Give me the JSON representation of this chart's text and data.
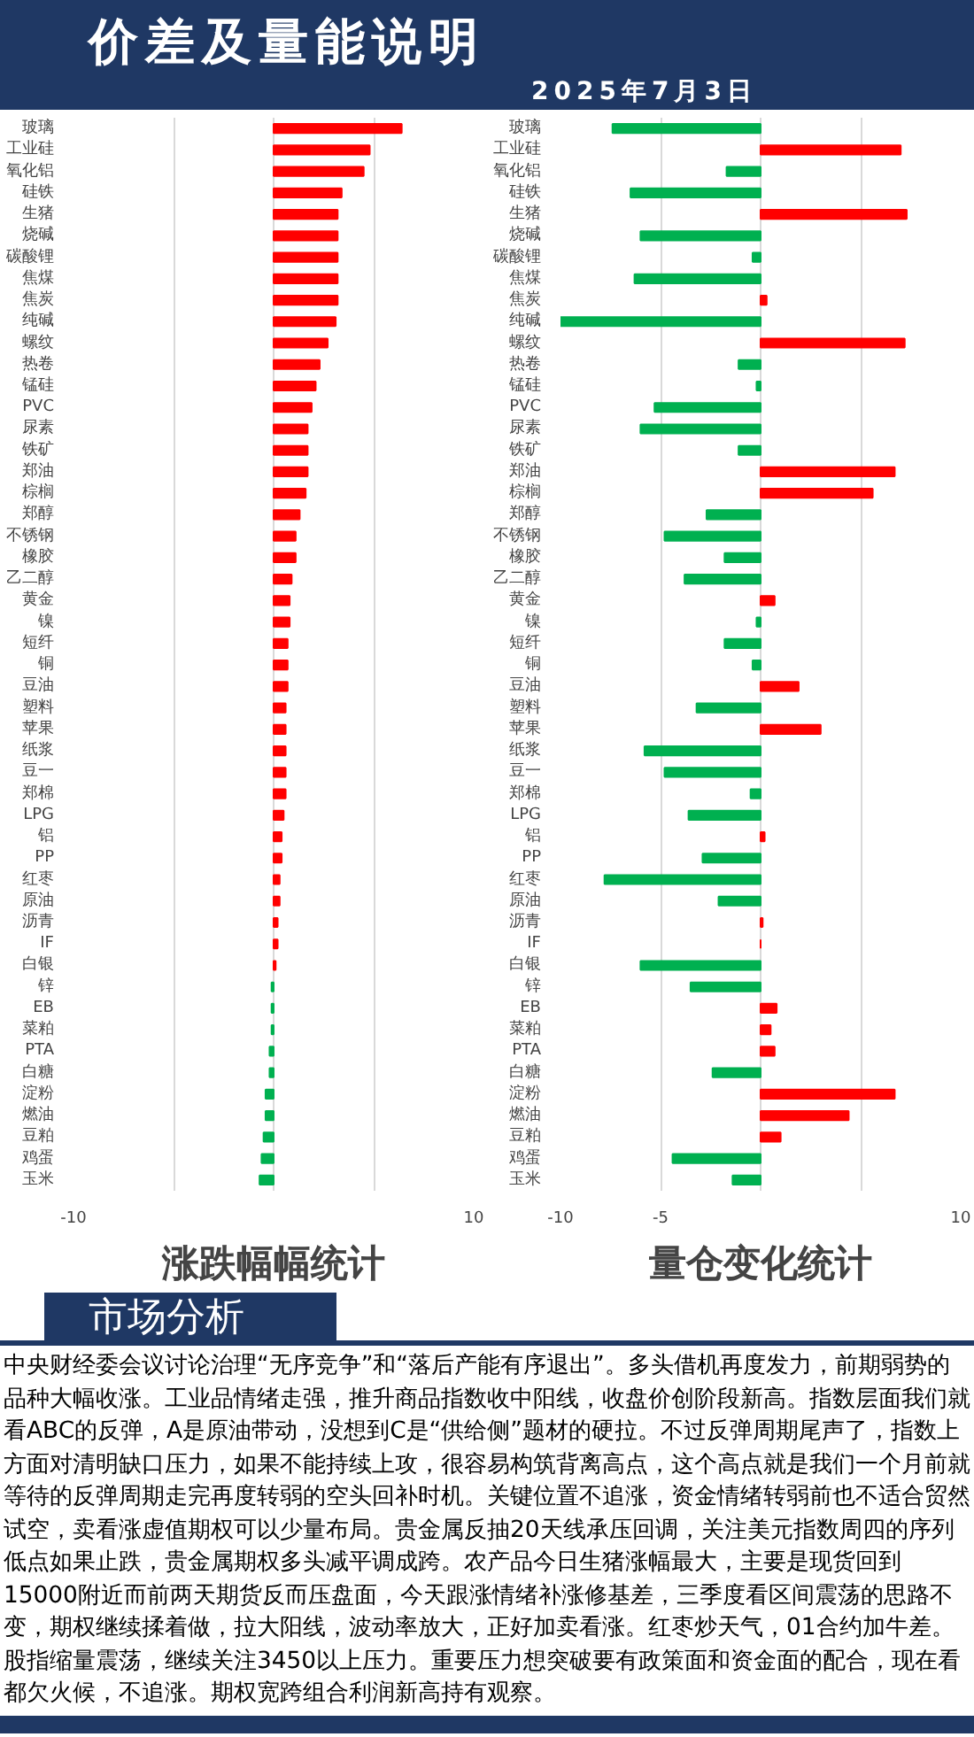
{
  "chart_data": [
    {
      "type": "other",
      "title": "价差及量能说明",
      "subtitle": "2025年7月3日"
    },
    {
      "type": "bar",
      "orientation": "horizontal",
      "title": "涨跌幅幅统计",
      "categories": [
        "玻璃",
        "工业硅",
        "氧化铝",
        "硅铁",
        "生猪",
        "烧碱",
        "碳酸锂",
        "焦煤",
        "焦炭",
        "纯碱",
        "螺纹",
        "热卷",
        "锰硅",
        "PVC",
        "尿素",
        "铁矿",
        "郑油",
        "棕榈",
        "郑醇",
        "不锈钢",
        "橡胶",
        "乙二醇",
        "黄金",
        "镍",
        "短纤",
        "铜",
        "豆油",
        "塑料",
        "苹果",
        "纸浆",
        "豆一",
        "郑棉",
        "LPG",
        "铝",
        "PP",
        "红枣",
        "原油",
        "沥青",
        "IF",
        "白银",
        "锌",
        "EB",
        "菜粕",
        "PTA",
        "白糖",
        "淀粉",
        "燃油",
        "豆粕",
        "鸡蛋",
        "玉米"
      ],
      "values": [
        6.4,
        4.8,
        4.5,
        3.4,
        3.2,
        3.2,
        3.2,
        3.2,
        3.2,
        3.1,
        2.7,
        2.3,
        2.1,
        1.9,
        1.7,
        1.7,
        1.7,
        1.6,
        1.3,
        1.1,
        1.1,
        0.9,
        0.8,
        0.8,
        0.7,
        0.7,
        0.7,
        0.6,
        0.6,
        0.6,
        0.6,
        0.6,
        0.5,
        0.4,
        0.4,
        0.3,
        0.3,
        0.2,
        0.2,
        0.1,
        -0.1,
        -0.1,
        -0.1,
        -0.2,
        -0.2,
        -0.4,
        -0.4,
        -0.5,
        -0.6,
        -0.7
      ],
      "colors": [
        "#ff0000",
        "#ff0000",
        "#ff0000",
        "#ff0000",
        "#ff0000",
        "#ff0000",
        "#ff0000",
        "#ff0000",
        "#ff0000",
        "#ff0000",
        "#ff0000",
        "#ff0000",
        "#ff0000",
        "#ff0000",
        "#ff0000",
        "#ff0000",
        "#ff0000",
        "#ff0000",
        "#ff0000",
        "#ff0000",
        "#ff0000",
        "#ff0000",
        "#ff0000",
        "#ff0000",
        "#ff0000",
        "#ff0000",
        "#ff0000",
        "#ff0000",
        "#ff0000",
        "#ff0000",
        "#ff0000",
        "#ff0000",
        "#ff0000",
        "#ff0000",
        "#ff0000",
        "#ff0000",
        "#ff0000",
        "#ff0000",
        "#ff0000",
        "#ff0000",
        "#00b050",
        "#00b050",
        "#00b050",
        "#00b050",
        "#00b050",
        "#00b050",
        "#00b050",
        "#00b050",
        "#00b050",
        "#00b050"
      ],
      "xlim": [
        -10,
        10
      ],
      "xticks": [
        -10,
        {
          "value": -5,
          "label": null
        },
        {
          "value": 0,
          "label": null
        },
        {
          "value": 5,
          "label": null
        },
        10
      ],
      "grid": "x"
    },
    {
      "type": "bar",
      "orientation": "horizontal",
      "title": "量仓变化统计",
      "categories": [
        "玻璃",
        "工业硅",
        "氧化铝",
        "硅铁",
        "生猪",
        "烧碱",
        "碳酸锂",
        "焦煤",
        "焦炭",
        "纯碱",
        "螺纹",
        "热卷",
        "锰硅",
        "PVC",
        "尿素",
        "铁矿",
        "郑油",
        "棕榈",
        "郑醇",
        "不锈钢",
        "橡胶",
        "乙二醇",
        "黄金",
        "镍",
        "短纤",
        "铜",
        "豆油",
        "塑料",
        "苹果",
        "纸浆",
        "豆一",
        "郑棉",
        "LPG",
        "铝",
        "PP",
        "红枣",
        "原油",
        "沥青",
        "IF",
        "白银",
        "锌",
        "EB",
        "菜粕",
        "PTA",
        "白糖",
        "淀粉",
        "燃油",
        "豆粕",
        "鸡蛋",
        "玉米"
      ],
      "values": [
        -7.4,
        7.0,
        -1.7,
        -6.5,
        7.3,
        -6.0,
        -0.4,
        -6.3,
        0.3,
        -10.0,
        7.2,
        -1.1,
        -0.2,
        -5.3,
        -6.0,
        -1.1,
        6.7,
        5.6,
        -2.7,
        -4.8,
        -1.8,
        -3.8,
        0.7,
        -0.2,
        -1.8,
        -0.4,
        1.9,
        -3.2,
        3.0,
        -5.8,
        -4.8,
        -0.5,
        -3.6,
        0.2,
        -2.9,
        -7.8,
        -2.1,
        0.1,
        0,
        -6.0,
        -3.5,
        0.8,
        0.5,
        0.7,
        -2.4,
        6.7,
        4.4,
        1.0,
        -4.4,
        -1.4
      ],
      "colors": [
        "#00b050",
        "#ff0000",
        "#00b050",
        "#00b050",
        "#ff0000",
        "#00b050",
        "#00b050",
        "#00b050",
        "#ff0000",
        "#00b050",
        "#ff0000",
        "#00b050",
        "#00b050",
        "#00b050",
        "#00b050",
        "#00b050",
        "#ff0000",
        "#ff0000",
        "#00b050",
        "#00b050",
        "#00b050",
        "#00b050",
        "#ff0000",
        "#00b050",
        "#00b050",
        "#00b050",
        "#ff0000",
        "#00b050",
        "#ff0000",
        "#00b050",
        "#00b050",
        "#00b050",
        "#00b050",
        "#ff0000",
        "#00b050",
        "#00b050",
        "#00b050",
        "#ff0000",
        "#ff0000",
        "#00b050",
        "#00b050",
        "#ff0000",
        "#ff0000",
        "#ff0000",
        "#00b050",
        "#ff0000",
        "#ff0000",
        "#ff0000",
        "#00b050",
        "#00b050"
      ],
      "xlim": [
        -10,
        10
      ],
      "xticks": [
        -10,
        -5,
        {
          "value": 0,
          "label": null
        },
        {
          "value": 5,
          "label": null
        },
        10
      ],
      "grid": "x"
    },
    {
      "type": "other",
      "title": "市场分析",
      "annotations": [
        "中央财经委会议讨论治理“无序竞争”和“落后产能有序退出”。多头借机再度发力，前期弱势的品种大幅收涨。工业品情绪走强，推升商品指数收中阳线，收盘价创阶段新高。指数层面我们就看ABC的反弹，A是原油带动，没想到C是“供给侧”题材的硬拉。不过反弹周期尾声了，指数上方面对清明缺口压力，如果不能持续上攻，很容易构筑背离高点，这个高点就是我们一个月前就等待的反弹周期走完再度转弱的空头回补时机。关键位置不追涨，资金情绪转弱前也不适合贸然试空，卖看涨虚值期权可以少量布局。贵金属反抽20天线承压回调，关注美元指数周四的序列低点如果止跌，贵金属期权多头减平调成跨。农产品今日生猪涨幅最大，主要是现货回到15000附近而前两天期货反而压盘面，今天跟涨情绪补涨修基差，三季度看区间震荡的思路不变，期权继续揉着做，拉大阳线，波动率放大，正好加卖看涨。红枣炒天气，01合约加牛差。股指缩量震荡，继续关注3450以上压力。重要压力想突破要有政策面和资金面的配合，现在看都欠火候，不追涨。期权宽跨组合利润新高持有观察。"
      ]
    }
  ]
}
